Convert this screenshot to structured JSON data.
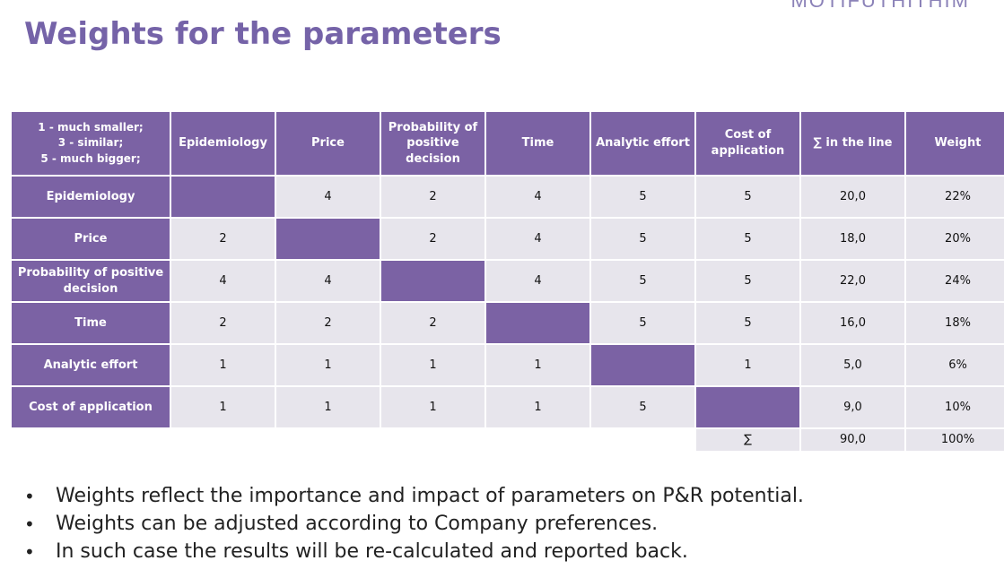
{
  "title": "Weights for the parameters",
  "top_cut_text": "MOTIFUTHITHIM",
  "table": {
    "corner": [
      "1 - much smaller;",
      "3 - similar;",
      "5 - much bigger;"
    ],
    "headers": [
      "Epidemiology",
      "Price",
      "Probability of positive decision",
      "Time",
      "Analytic effort",
      "Cost of application",
      "∑ in the line",
      "Weight"
    ],
    "rows": [
      {
        "label": "Epidemiology",
        "cells": [
          "",
          "4",
          "2",
          "4",
          "5",
          "5",
          "20,0",
          "22%"
        ]
      },
      {
        "label": "Price",
        "cells": [
          "2",
          "",
          "2",
          "4",
          "5",
          "5",
          "18,0",
          "20%"
        ]
      },
      {
        "label": "Probability of positive decision",
        "cells": [
          "4",
          "4",
          "",
          "4",
          "5",
          "5",
          "22,0",
          "24%"
        ]
      },
      {
        "label": "Time",
        "cells": [
          "2",
          "2",
          "2",
          "",
          "5",
          "5",
          "16,0",
          "18%"
        ]
      },
      {
        "label": "Analytic effort",
        "cells": [
          "1",
          "1",
          "1",
          "1",
          "",
          "1",
          "5,0",
          "6%"
        ]
      },
      {
        "label": "Cost of application",
        "cells": [
          "1",
          "1",
          "1",
          "1",
          "5",
          "",
          "9,0",
          "10%"
        ]
      }
    ],
    "total": {
      "symbol": "∑",
      "sum": "90,0",
      "weight": "100%"
    }
  },
  "bullets": [
    "Weights reflect the importance and impact of parameters on P&R potential.",
    "Weights can be adjusted according to Company preferences.",
    "In such case the results will be re-calculated and reported back."
  ],
  "colors": {
    "accent": "#7b62a4",
    "title": "#7563a8",
    "cell_bg": "#e7e5ec"
  }
}
